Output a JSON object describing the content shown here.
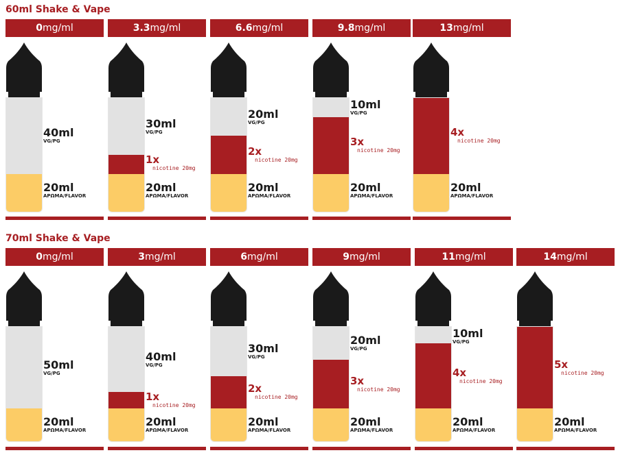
{
  "labels": {
    "vg_sub": "VG/PG",
    "flavor_sub": "ΑΡΩΜΑ/FLAVOR",
    "nic_sub": "nicotine 20mg"
  },
  "colors": {
    "brand_red": "#a71e22",
    "cap": "#1a1a1a",
    "vg": "#e2e2e2",
    "flavor": "#fccc66"
  },
  "sections": [
    {
      "title": "60ml Shake & Vape",
      "capacity_ml": 60,
      "panels": [
        {
          "strength": "0",
          "unit": "mg/ml",
          "vg_label": "40ml",
          "vg_ml": 40,
          "nic_label": "",
          "nic_ml": 0,
          "flavor_label": "20ml",
          "flavor_ml": 20
        },
        {
          "strength": "3.3",
          "unit": "mg/ml",
          "vg_label": "30ml",
          "vg_ml": 30,
          "nic_label": "1x",
          "nic_ml": 10,
          "flavor_label": "20ml",
          "flavor_ml": 20
        },
        {
          "strength": "6.6",
          "unit": "mg/ml",
          "vg_label": "20ml",
          "vg_ml": 20,
          "nic_label": "2x",
          "nic_ml": 20,
          "flavor_label": "20ml",
          "flavor_ml": 20
        },
        {
          "strength": "9.8",
          "unit": "mg/ml",
          "vg_label": "10ml",
          "vg_ml": 10,
          "nic_label": "3x",
          "nic_ml": 30,
          "flavor_label": "20ml",
          "flavor_ml": 20
        },
        {
          "strength": "13",
          "unit": "mg/ml",
          "vg_label": "",
          "vg_ml": 0,
          "nic_label": "4x",
          "nic_ml": 40,
          "flavor_label": "20ml",
          "flavor_ml": 20
        }
      ]
    },
    {
      "title": "70ml Shake & Vape",
      "capacity_ml": 70,
      "panels": [
        {
          "strength": "0",
          "unit": "mg/ml",
          "vg_label": "50ml",
          "vg_ml": 50,
          "nic_label": "",
          "nic_ml": 0,
          "flavor_label": "20ml",
          "flavor_ml": 20
        },
        {
          "strength": "3",
          "unit": "mg/ml",
          "vg_label": "40ml",
          "vg_ml": 40,
          "nic_label": "1x",
          "nic_ml": 10,
          "flavor_label": "20ml",
          "flavor_ml": 20
        },
        {
          "strength": "6",
          "unit": "mg/ml",
          "vg_label": "30ml",
          "vg_ml": 30,
          "nic_label": "2x",
          "nic_ml": 20,
          "flavor_label": "20ml",
          "flavor_ml": 20
        },
        {
          "strength": "9",
          "unit": "mg/ml",
          "vg_label": "20ml",
          "vg_ml": 20,
          "nic_label": "3x",
          "nic_ml": 30,
          "flavor_label": "20ml",
          "flavor_ml": 20
        },
        {
          "strength": "11",
          "unit": "mg/ml",
          "vg_label": "10ml",
          "vg_ml": 10,
          "nic_label": "4x",
          "nic_ml": 40,
          "flavor_label": "20ml",
          "flavor_ml": 20
        },
        {
          "strength": "14",
          "unit": "mg/ml",
          "vg_label": "",
          "vg_ml": 0,
          "nic_label": "5x",
          "nic_ml": 50,
          "flavor_label": "20ml",
          "flavor_ml": 20
        }
      ]
    }
  ]
}
